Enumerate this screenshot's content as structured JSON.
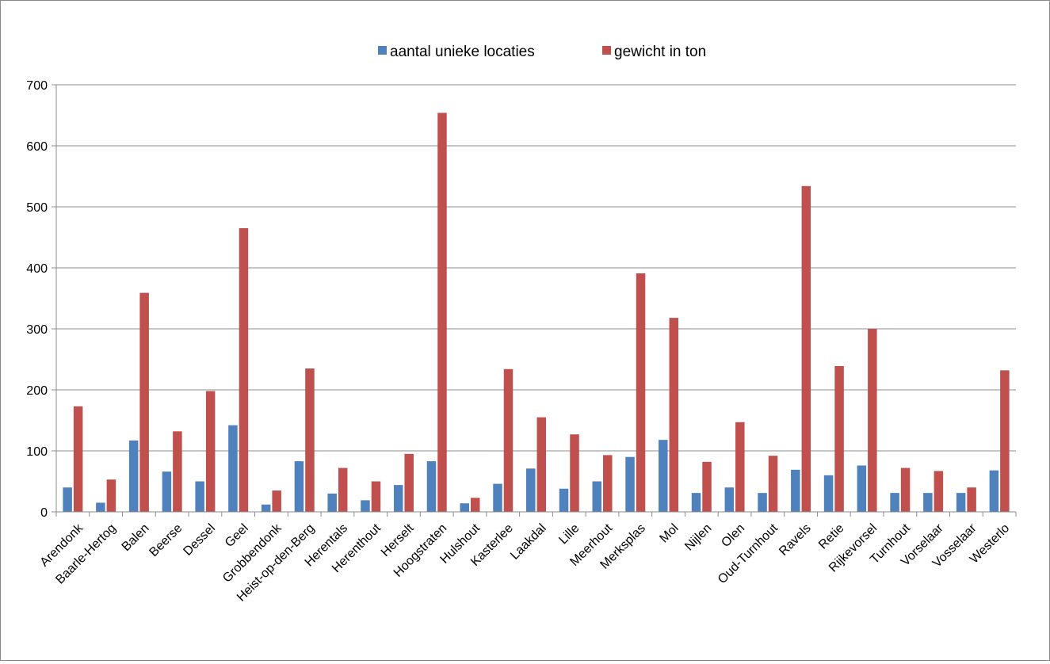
{
  "chart_data": {
    "type": "bar",
    "title": "",
    "xlabel": "",
    "ylabel": "",
    "ylim": [
      0,
      700
    ],
    "yticks": [
      0,
      100,
      200,
      300,
      400,
      500,
      600,
      700
    ],
    "grid": true,
    "legend_position": "top-center",
    "categories": [
      "Arendonk",
      "Baarle-Hertog",
      "Balen",
      "Beerse",
      "Dessel",
      "Geel",
      "Grobbendonk",
      "Heist-op-den-Berg",
      "Herentals",
      "Herenthout",
      "Herselt",
      "Hoogstraten",
      "Hulshout",
      "Kasterlee",
      "Laakdal",
      "Lille",
      "Meerhout",
      "Merksplas",
      "Mol",
      "Nijlen",
      "Olen",
      "Oud-Turnhout",
      "Ravels",
      "Retie",
      "Rijkevorsel",
      "Turnhout",
      "Vorselaar",
      "Vosselaar",
      "Westerlo"
    ],
    "series": [
      {
        "name": "aantal unieke locaties",
        "color": "#4f81bd",
        "values": [
          40,
          15,
          117,
          66,
          50,
          142,
          12,
          83,
          30,
          19,
          44,
          83,
          14,
          46,
          71,
          38,
          50,
          90,
          118,
          31,
          40,
          31,
          69,
          60,
          76,
          31,
          31,
          31,
          68
        ]
      },
      {
        "name": "gewicht in ton",
        "color": "#c0504d",
        "values": [
          173,
          53,
          359,
          132,
          198,
          465,
          35,
          235,
          72,
          50,
          95,
          654,
          23,
          234,
          155,
          127,
          93,
          391,
          318,
          82,
          147,
          92,
          534,
          239,
          300,
          72,
          67,
          40,
          232
        ]
      }
    ]
  }
}
